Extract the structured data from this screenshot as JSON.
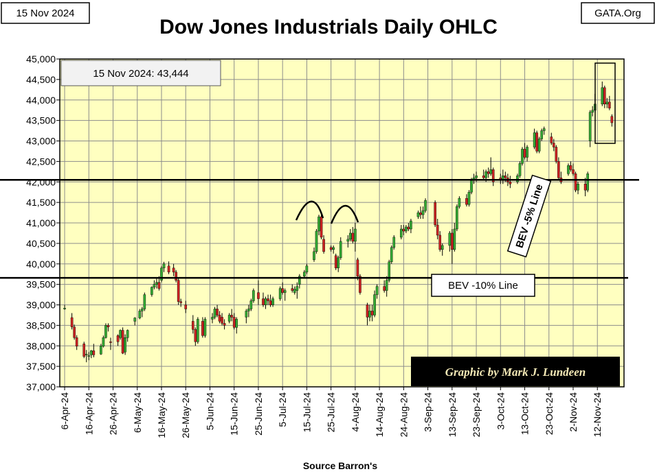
{
  "chart_data": {
    "type": "ohlc",
    "title": "Dow Jones Industrials Daily OHLC",
    "date_label": "15 Nov 2024",
    "site_label": "GATA.Org",
    "last_close_label": "15 Nov 2024:  43,444",
    "xlabel": "Source Barron's",
    "ylabel": "",
    "ylim": [
      37000,
      45000
    ],
    "ytick_labels": [
      "37,000",
      "37,500",
      "38,000",
      "38,500",
      "39,000",
      "39,500",
      "40,000",
      "40,500",
      "41,000",
      "41,500",
      "42,000",
      "42,500",
      "43,000",
      "43,500",
      "44,000",
      "44,500",
      "45,000"
    ],
    "xtick_labels": [
      "6-Apr-24",
      "16-Apr-24",
      "26-Apr-24",
      "6-May-24",
      "16-May-24",
      "26-May-24",
      "5-Jun-24",
      "15-Jun-24",
      "25-Jun-24",
      "5-Jul-24",
      "15-Jul-24",
      "25-Jul-24",
      "4-Aug-24",
      "14-Aug-24",
      "24-Aug-24",
      "3-Sep-24",
      "13-Sep-24",
      "23-Sep-24",
      "3-Oct-24",
      "13-Oct-24",
      "23-Oct-24",
      "2-Nov-24",
      "12-Nov-24"
    ],
    "grid": true,
    "up_color": "#33aa33",
    "down_color": "#cc2222",
    "plot_bg": "#ffffc0",
    "grid_color": "#8c8c8c",
    "credit_bg": "#000000",
    "bev_5_label": "BEV -5% Line",
    "bev_5_level": 42050,
    "bev_10_label": "BEV -10% Line",
    "bev_10_level": 39660,
    "credit": "Graphic by Mark J. Lundeen",
    "series": [
      {
        "day": 0,
        "o": 38900,
        "h": 39000,
        "l": 38880,
        "c": 38920
      },
      {
        "day": 3,
        "o": 38690,
        "h": 38800,
        "l": 38400,
        "c": 38460
      },
      {
        "day": 4,
        "o": 38460,
        "h": 38520,
        "l": 38150,
        "c": 38200
      },
      {
        "day": 5,
        "o": 38200,
        "h": 38260,
        "l": 37900,
        "c": 37990
      },
      {
        "day": 8,
        "o": 38050,
        "h": 38100,
        "l": 37700,
        "c": 37740
      },
      {
        "day": 9,
        "o": 37780,
        "h": 37900,
        "l": 37600,
        "c": 37800
      },
      {
        "day": 10,
        "o": 37750,
        "h": 37850,
        "l": 37650,
        "c": 37760
      },
      {
        "day": 11,
        "o": 37780,
        "h": 37900,
        "l": 37700,
        "c": 37880
      },
      {
        "day": 12,
        "o": 37880,
        "h": 38050,
        "l": 37720,
        "c": 37780
      },
      {
        "day": 15,
        "o": 37800,
        "h": 38050,
        "l": 37780,
        "c": 38000
      },
      {
        "day": 16,
        "o": 37990,
        "h": 38250,
        "l": 37960,
        "c": 38200
      },
      {
        "day": 17,
        "o": 38200,
        "h": 38550,
        "l": 38180,
        "c": 38500
      },
      {
        "day": 18,
        "o": 38500,
        "h": 38550,
        "l": 38350,
        "c": 38460
      },
      {
        "day": 19,
        "o": 38100,
        "h": 38200,
        "l": 37900,
        "c": 38080
      },
      {
        "day": 22,
        "o": 38250,
        "h": 38280,
        "l": 38000,
        "c": 38100
      },
      {
        "day": 23,
        "o": 38200,
        "h": 38400,
        "l": 38150,
        "c": 38380
      },
      {
        "day": 24,
        "o": 38380,
        "h": 38450,
        "l": 37800,
        "c": 37820
      },
      {
        "day": 25,
        "o": 37850,
        "h": 38280,
        "l": 37780,
        "c": 38200
      },
      {
        "day": 26,
        "o": 38200,
        "h": 38400,
        "l": 38100,
        "c": 38380
      },
      {
        "day": 29,
        "o": 38600,
        "h": 38700,
        "l": 38500,
        "c": 38680
      },
      {
        "day": 31,
        "o": 38680,
        "h": 38900,
        "l": 38650,
        "c": 38850
      },
      {
        "day": 32,
        "o": 38850,
        "h": 38950,
        "l": 38700,
        "c": 38900
      },
      {
        "day": 33,
        "o": 38900,
        "h": 39300,
        "l": 38850,
        "c": 39250
      },
      {
        "day": 36,
        "o": 39250,
        "h": 39450,
        "l": 39200,
        "c": 39430
      },
      {
        "day": 37,
        "o": 39430,
        "h": 39600,
        "l": 39380,
        "c": 39500
      },
      {
        "day": 38,
        "o": 39500,
        "h": 39650,
        "l": 39400,
        "c": 39550
      },
      {
        "day": 39,
        "o": 39550,
        "h": 39700,
        "l": 39350,
        "c": 39400
      },
      {
        "day": 40,
        "o": 39600,
        "h": 39950,
        "l": 39550,
        "c": 39900
      },
      {
        "day": 41,
        "o": 39900,
        "h": 40050,
        "l": 39800,
        "c": 40000
      },
      {
        "day": 43,
        "o": 39950,
        "h": 40060,
        "l": 39750,
        "c": 39800
      },
      {
        "day": 45,
        "o": 39900,
        "h": 40000,
        "l": 39700,
        "c": 39800
      },
      {
        "day": 46,
        "o": 39800,
        "h": 39850,
        "l": 39550,
        "c": 39600
      },
      {
        "day": 47,
        "o": 39600,
        "h": 39650,
        "l": 39000,
        "c": 39080
      },
      {
        "day": 48,
        "o": 39080,
        "h": 39150,
        "l": 38950,
        "c": 39050
      },
      {
        "day": 50,
        "o": 39000,
        "h": 39100,
        "l": 38800,
        "c": 38900
      },
      {
        "day": 53,
        "o": 38600,
        "h": 38750,
        "l": 38300,
        "c": 38400
      },
      {
        "day": 54,
        "o": 38400,
        "h": 38450,
        "l": 38000,
        "c": 38100
      },
      {
        "day": 55,
        "o": 38100,
        "h": 38700,
        "l": 38050,
        "c": 38650
      },
      {
        "day": 57,
        "o": 38600,
        "h": 38700,
        "l": 38200,
        "c": 38250
      },
      {
        "day": 58,
        "o": 38250,
        "h": 38700,
        "l": 38200,
        "c": 38650
      },
      {
        "day": 61,
        "o": 38650,
        "h": 38800,
        "l": 38550,
        "c": 38700
      },
      {
        "day": 62,
        "o": 38700,
        "h": 38950,
        "l": 38650,
        "c": 38900
      },
      {
        "day": 63,
        "o": 38900,
        "h": 39000,
        "l": 38700,
        "c": 38750
      },
      {
        "day": 64,
        "o": 38750,
        "h": 38850,
        "l": 38550,
        "c": 38600
      },
      {
        "day": 65,
        "o": 38700,
        "h": 38800,
        "l": 38500,
        "c": 38550
      },
      {
        "day": 66,
        "o": 38550,
        "h": 38650,
        "l": 38400,
        "c": 38500
      },
      {
        "day": 68,
        "o": 38600,
        "h": 38800,
        "l": 38550,
        "c": 38750
      },
      {
        "day": 69,
        "o": 38750,
        "h": 38900,
        "l": 38600,
        "c": 38700
      },
      {
        "day": 70,
        "o": 38700,
        "h": 38800,
        "l": 38400,
        "c": 38450
      },
      {
        "day": 71,
        "o": 38450,
        "h": 38700,
        "l": 38300,
        "c": 38650
      },
      {
        "day": 75,
        "o": 38700,
        "h": 38900,
        "l": 38550,
        "c": 38850
      },
      {
        "day": 76,
        "o": 38850,
        "h": 39000,
        "l": 38700,
        "c": 38900
      },
      {
        "day": 77,
        "o": 38900,
        "h": 39150,
        "l": 38850,
        "c": 39100
      },
      {
        "day": 78,
        "o": 39100,
        "h": 39400,
        "l": 39050,
        "c": 39350
      },
      {
        "day": 80,
        "o": 39300,
        "h": 39600,
        "l": 39000,
        "c": 39150
      },
      {
        "day": 82,
        "o": 39150,
        "h": 39300,
        "l": 38950,
        "c": 39000
      },
      {
        "day": 83,
        "o": 39000,
        "h": 39200,
        "l": 38900,
        "c": 39150
      },
      {
        "day": 84,
        "o": 39150,
        "h": 39250,
        "l": 39000,
        "c": 39100
      },
      {
        "day": 85,
        "o": 39100,
        "h": 39250,
        "l": 38950,
        "c": 39000
      },
      {
        "day": 86,
        "o": 39000,
        "h": 39200,
        "l": 38950,
        "c": 39150
      },
      {
        "day": 89,
        "o": 39150,
        "h": 39450,
        "l": 39100,
        "c": 39400
      },
      {
        "day": 90,
        "o": 39400,
        "h": 39550,
        "l": 39250,
        "c": 39300
      },
      {
        "day": 91,
        "o": 39300,
        "h": 39400,
        "l": 39100,
        "c": 39350
      },
      {
        "day": 94,
        "o": 39400,
        "h": 39500,
        "l": 39300,
        "c": 39350
      },
      {
        "day": 95,
        "o": 39300,
        "h": 39450,
        "l": 39250,
        "c": 39380
      },
      {
        "day": 96,
        "o": 39350,
        "h": 39550,
        "l": 39150,
        "c": 39450
      },
      {
        "day": 97,
        "o": 39500,
        "h": 39750,
        "l": 39400,
        "c": 39700
      },
      {
        "day": 99,
        "o": 39700,
        "h": 39850,
        "l": 39650,
        "c": 39800
      },
      {
        "day": 100,
        "o": 39800,
        "h": 40000,
        "l": 39750,
        "c": 39950
      },
      {
        "day": 103,
        "o": 40100,
        "h": 40400,
        "l": 40050,
        "c": 40300
      },
      {
        "day": 104,
        "o": 40300,
        "h": 40850,
        "l": 40250,
        "c": 40800
      },
      {
        "day": 105,
        "o": 40800,
        "h": 41200,
        "l": 40700,
        "c": 41150
      },
      {
        "day": 106,
        "o": 41150,
        "h": 41200,
        "l": 40600,
        "c": 40650
      },
      {
        "day": 107,
        "o": 40600,
        "h": 40700,
        "l": 40250,
        "c": 40300
      },
      {
        "day": 110,
        "o": 40400,
        "h": 40450,
        "l": 40300,
        "c": 40350
      },
      {
        "day": 111,
        "o": 40350,
        "h": 40450,
        "l": 40250,
        "c": 40400
      },
      {
        "day": 112,
        "o": 40200,
        "h": 40250,
        "l": 39850,
        "c": 39900
      },
      {
        "day": 113,
        "o": 39900,
        "h": 40200,
        "l": 39800,
        "c": 40150
      },
      {
        "day": 114,
        "o": 40150,
        "h": 40650,
        "l": 40100,
        "c": 40550
      },
      {
        "day": 117,
        "o": 40550,
        "h": 40700,
        "l": 40400,
        "c": 40600
      },
      {
        "day": 118,
        "o": 40600,
        "h": 40850,
        "l": 40550,
        "c": 40750
      },
      {
        "day": 119,
        "o": 40750,
        "h": 40900,
        "l": 40500,
        "c": 40550
      },
      {
        "day": 120,
        "o": 40550,
        "h": 41000,
        "l": 40300,
        "c": 40850
      },
      {
        "day": 121,
        "o": 40100,
        "h": 40150,
        "l": 39600,
        "c": 39700
      },
      {
        "day": 122,
        "o": 39700,
        "h": 39750,
        "l": 39250,
        "c": 39300
      },
      {
        "day": 125,
        "o": 39000,
        "h": 39050,
        "l": 38500,
        "c": 38700
      },
      {
        "day": 126,
        "o": 38700,
        "h": 39000,
        "l": 38600,
        "c": 38850
      },
      {
        "day": 127,
        "o": 38850,
        "h": 39000,
        "l": 38600,
        "c": 38750
      },
      {
        "day": 128,
        "o": 38750,
        "h": 39350,
        "l": 38700,
        "c": 39250
      },
      {
        "day": 129,
        "o": 39250,
        "h": 39500,
        "l": 39150,
        "c": 39450
      },
      {
        "day": 132,
        "o": 39450,
        "h": 39600,
        "l": 39300,
        "c": 39350
      },
      {
        "day": 133,
        "o": 39350,
        "h": 39700,
        "l": 39200,
        "c": 39600
      },
      {
        "day": 134,
        "o": 39600,
        "h": 40100,
        "l": 39550,
        "c": 40050
      },
      {
        "day": 135,
        "o": 40050,
        "h": 40450,
        "l": 40000,
        "c": 40400
      },
      {
        "day": 136,
        "o": 40400,
        "h": 40700,
        "l": 40350,
        "c": 40650
      },
      {
        "day": 139,
        "o": 40650,
        "h": 40950,
        "l": 40600,
        "c": 40850
      },
      {
        "day": 140,
        "o": 40850,
        "h": 40950,
        "l": 40700,
        "c": 40800
      },
      {
        "day": 141,
        "o": 40800,
        "h": 40950,
        "l": 40750,
        "c": 40900
      },
      {
        "day": 142,
        "o": 40900,
        "h": 41000,
        "l": 40800,
        "c": 40850
      },
      {
        "day": 143,
        "o": 40850,
        "h": 41100,
        "l": 40750,
        "c": 41050
      },
      {
        "day": 146,
        "o": 41150,
        "h": 41300,
        "l": 41100,
        "c": 41250
      },
      {
        "day": 147,
        "o": 41250,
        "h": 41400,
        "l": 41100,
        "c": 41200
      },
      {
        "day": 148,
        "o": 41200,
        "h": 41400,
        "l": 41100,
        "c": 41300
      },
      {
        "day": 149,
        "o": 41300,
        "h": 41600,
        "l": 41250,
        "c": 41550
      },
      {
        "day": 153,
        "o": 41500,
        "h": 41550,
        "l": 40900,
        "c": 40950
      },
      {
        "day": 154,
        "o": 40950,
        "h": 41100,
        "l": 40600,
        "c": 40700
      },
      {
        "day": 155,
        "o": 40700,
        "h": 40800,
        "l": 40300,
        "c": 40350
      },
      {
        "day": 156,
        "o": 40350,
        "h": 40500,
        "l": 40200,
        "c": 40450
      },
      {
        "day": 159,
        "o": 40450,
        "h": 40800,
        "l": 40300,
        "c": 40750
      },
      {
        "day": 160,
        "o": 40750,
        "h": 40850,
        "l": 40000,
        "c": 40350
      },
      {
        "day": 161,
        "o": 40350,
        "h": 41000,
        "l": 40300,
        "c": 40850
      },
      {
        "day": 162,
        "o": 40850,
        "h": 41450,
        "l": 40800,
        "c": 41400
      },
      {
        "day": 163,
        "o": 41400,
        "h": 41650,
        "l": 41350,
        "c": 41600
      },
      {
        "day": 166,
        "o": 41600,
        "h": 41700,
        "l": 41400,
        "c": 41450
      },
      {
        "day": 167,
        "o": 41450,
        "h": 41800,
        "l": 41400,
        "c": 41750
      },
      {
        "day": 168,
        "o": 41750,
        "h": 42100,
        "l": 41700,
        "c": 42050
      },
      {
        "day": 169,
        "o": 42050,
        "h": 42200,
        "l": 41950,
        "c": 42100
      },
      {
        "day": 170,
        "o": 42100,
        "h": 42250,
        "l": 42000,
        "c": 42150
      },
      {
        "day": 173,
        "o": 42150,
        "h": 42300,
        "l": 42050,
        "c": 42100
      },
      {
        "day": 174,
        "o": 42100,
        "h": 42300,
        "l": 42000,
        "c": 42250
      },
      {
        "day": 175,
        "o": 42250,
        "h": 42350,
        "l": 42100,
        "c": 42200
      },
      {
        "day": 176,
        "o": 42200,
        "h": 42600,
        "l": 42150,
        "c": 42300
      },
      {
        "day": 177,
        "o": 42300,
        "h": 42350,
        "l": 41900,
        "c": 42000
      },
      {
        "day": 180,
        "o": 42100,
        "h": 42200,
        "l": 41950,
        "c": 42050
      },
      {
        "day": 181,
        "o": 42050,
        "h": 42300,
        "l": 41950,
        "c": 42150
      },
      {
        "day": 182,
        "o": 42150,
        "h": 42250,
        "l": 42000,
        "c": 42100
      },
      {
        "day": 183,
        "o": 42100,
        "h": 42200,
        "l": 41900,
        "c": 42000
      },
      {
        "day": 184,
        "o": 42000,
        "h": 42150,
        "l": 41850,
        "c": 41950
      },
      {
        "day": 187,
        "o": 42000,
        "h": 42200,
        "l": 41950,
        "c": 42150
      },
      {
        "day": 188,
        "o": 42150,
        "h": 42500,
        "l": 42100,
        "c": 42450
      },
      {
        "day": 189,
        "o": 42450,
        "h": 42850,
        "l": 42400,
        "c": 42800
      },
      {
        "day": 190,
        "o": 42800,
        "h": 42950,
        "l": 42550,
        "c": 42600
      },
      {
        "day": 191,
        "o": 42600,
        "h": 42900,
        "l": 42500,
        "c": 42850
      },
      {
        "day": 194,
        "o": 42850,
        "h": 43300,
        "l": 42800,
        "c": 43200
      },
      {
        "day": 195,
        "o": 43200,
        "h": 43250,
        "l": 42700,
        "c": 42750
      },
      {
        "day": 196,
        "o": 42750,
        "h": 43100,
        "l": 42700,
        "c": 43050
      },
      {
        "day": 197,
        "o": 43050,
        "h": 43300,
        "l": 43000,
        "c": 43250
      },
      {
        "day": 198,
        "o": 43250,
        "h": 43350,
        "l": 43150,
        "c": 43300
      },
      {
        "day": 201,
        "o": 43100,
        "h": 43200,
        "l": 42900,
        "c": 42950
      },
      {
        "day": 202,
        "o": 42950,
        "h": 43050,
        "l": 42750,
        "c": 42850
      },
      {
        "day": 203,
        "o": 42850,
        "h": 42900,
        "l": 42450,
        "c": 42500
      },
      {
        "day": 204,
        "o": 42500,
        "h": 42600,
        "l": 42050,
        "c": 42100
      },
      {
        "day": 205,
        "o": 42100,
        "h": 42250,
        "l": 41950,
        "c": 42000
      },
      {
        "day": 208,
        "o": 42200,
        "h": 42450,
        "l": 42150,
        "c": 42400
      },
      {
        "day": 209,
        "o": 42400,
        "h": 42500,
        "l": 42250,
        "c": 42300
      },
      {
        "day": 210,
        "o": 42300,
        "h": 42450,
        "l": 42150,
        "c": 42200
      },
      {
        "day": 211,
        "o": 42200,
        "h": 42250,
        "l": 41750,
        "c": 41800
      },
      {
        "day": 212,
        "o": 41800,
        "h": 42000,
        "l": 41700,
        "c": 41950
      },
      {
        "day": 215,
        "o": 41950,
        "h": 42100,
        "l": 41650,
        "c": 41800
      },
      {
        "day": 216,
        "o": 41800,
        "h": 42250,
        "l": 41750,
        "c": 42200
      },
      {
        "day": 217,
        "o": 43000,
        "h": 43750,
        "l": 42850,
        "c": 43700
      },
      {
        "day": 218,
        "o": 43700,
        "h": 43850,
        "l": 43600,
        "c": 43750
      },
      {
        "day": 219,
        "o": 43750,
        "h": 44150,
        "l": 43700,
        "c": 43900
      },
      {
        "day": 222,
        "o": 43900,
        "h": 44450,
        "l": 43850,
        "c": 44300
      },
      {
        "day": 223,
        "o": 44300,
        "h": 44350,
        "l": 43800,
        "c": 43900
      },
      {
        "day": 224,
        "o": 43900,
        "h": 44050,
        "l": 43800,
        "c": 43950
      },
      {
        "day": 225,
        "o": 43950,
        "h": 44100,
        "l": 43750,
        "c": 43800
      },
      {
        "day": 226,
        "o": 43600,
        "h": 43650,
        "l": 43350,
        "c": 43444
      }
    ]
  }
}
